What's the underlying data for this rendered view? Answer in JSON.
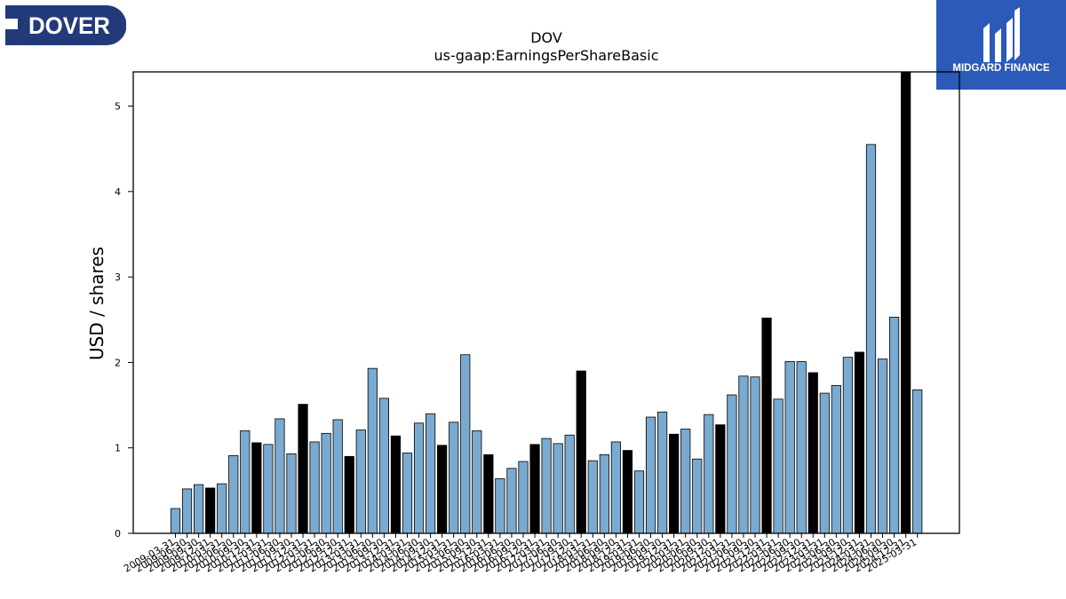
{
  "header": {
    "company_logo_text": "DOVER",
    "brand_logo_text": "MIDGARD FINANCE"
  },
  "colors": {
    "bar_default": "#7aaad0",
    "bar_highlight": "#000000",
    "dover_navy": "#233a7a",
    "midgard_blue": "#2b5ab8"
  },
  "chart_data": {
    "type": "bar",
    "title": "DOV",
    "subtitle": "us-gaap:EarningsPerShareBasic",
    "ylabel": "USD / shares",
    "xlabel": "",
    "ylim": [
      0,
      5.4
    ],
    "yticks": [
      "0",
      "1",
      "2",
      "3",
      "4",
      "5"
    ],
    "grid": false,
    "categories": [
      "2009-03-31",
      "2009-06-30",
      "2009-09-30",
      "2009-12-31",
      "2010-03-31",
      "2010-06-30",
      "2010-09-30",
      "2010-12-31",
      "2011-03-31",
      "2011-06-30",
      "2011-09-30",
      "2011-12-31",
      "2012-03-31",
      "2012-06-30",
      "2012-09-30",
      "2012-12-31",
      "2013-03-31",
      "2013-06-30",
      "2013-09-30",
      "2013-12-31",
      "2014-03-31",
      "2014-06-30",
      "2014-09-30",
      "2014-12-31",
      "2015-03-31",
      "2015-06-30",
      "2015-09-30",
      "2015-12-31",
      "2016-03-31",
      "2016-06-30",
      "2016-09-30",
      "2016-12-31",
      "2017-03-31",
      "2017-06-30",
      "2017-09-30",
      "2017-12-31",
      "2018-03-31",
      "2018-06-30",
      "2018-09-30",
      "2018-12-31",
      "2019-03-31",
      "2019-06-30",
      "2019-09-30",
      "2019-12-31",
      "2020-03-31",
      "2020-06-30",
      "2020-09-30",
      "2020-12-31",
      "2021-03-31",
      "2021-06-30",
      "2021-09-30",
      "2021-12-31",
      "2022-03-31",
      "2022-06-30",
      "2022-09-30",
      "2022-12-31",
      "2023-03-31",
      "2023-06-30",
      "2023-09-30",
      "2023-12-31",
      "2024-03-31",
      "2024-06-30",
      "2024-09-30",
      "2024-12-31",
      "2025-03-31"
    ],
    "values": [
      0.29,
      0.52,
      0.57,
      0.53,
      0.58,
      0.91,
      1.2,
      1.06,
      1.04,
      1.34,
      0.93,
      1.51,
      1.07,
      1.17,
      1.33,
      0.9,
      1.21,
      1.93,
      1.58,
      1.14,
      0.94,
      1.29,
      1.4,
      1.03,
      1.3,
      2.09,
      1.2,
      0.92,
      0.64,
      0.76,
      0.84,
      1.04,
      1.11,
      1.05,
      1.15,
      1.9,
      0.85,
      0.92,
      1.07,
      0.97,
      0.73,
      1.36,
      1.42,
      1.16,
      1.22,
      0.87,
      1.39,
      1.27,
      1.62,
      1.84,
      1.83,
      2.52,
      1.57,
      2.01,
      2.01,
      1.88,
      1.64,
      1.73,
      2.06,
      2.12,
      4.55,
      2.04,
      2.53,
      5.4,
      1.68
    ],
    "highlight": [
      false,
      false,
      false,
      true,
      false,
      false,
      false,
      true,
      false,
      false,
      false,
      true,
      false,
      false,
      false,
      true,
      false,
      false,
      false,
      true,
      false,
      false,
      false,
      true,
      false,
      false,
      false,
      true,
      false,
      false,
      false,
      true,
      false,
      false,
      false,
      true,
      false,
      false,
      false,
      true,
      false,
      false,
      false,
      true,
      false,
      false,
      false,
      true,
      false,
      false,
      false,
      true,
      false,
      false,
      false,
      true,
      false,
      false,
      false,
      true,
      false,
      false,
      false,
      true,
      false
    ]
  }
}
